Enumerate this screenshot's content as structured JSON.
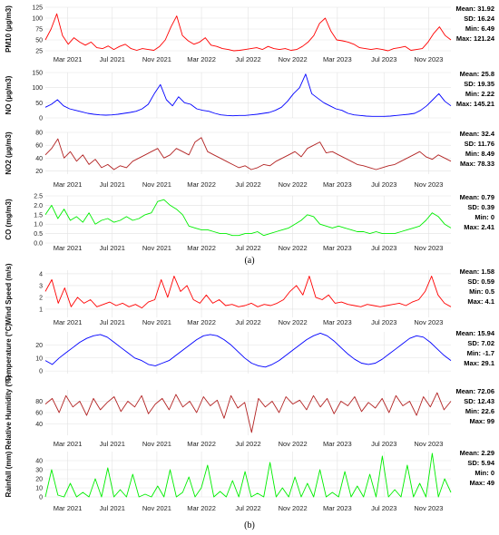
{
  "captions": [
    "(a)",
    "(b)"
  ],
  "chart_data": [
    {
      "type": "line",
      "ylabel": "PM10 (µg/m3)",
      "color": "#ff0000",
      "ylim": [
        25,
        125
      ],
      "yticks": [
        25,
        50,
        75,
        100,
        125
      ],
      "xticks": [
        "Mar 2021",
        "Jul 2021",
        "Nov 2021",
        "Mar 2022",
        "Jul 2022",
        "Nov 2022",
        "Mar 2023",
        "Jul 2023",
        "Nov 2023"
      ],
      "stats": [
        "Mean: 31.92",
        "SD: 16.24",
        "Min: 6.49",
        "Max: 121.24"
      ],
      "series": [
        {
          "values": [
            50,
            75,
            110,
            60,
            40,
            55,
            45,
            38,
            45,
            32,
            30,
            36,
            28,
            35,
            40,
            30,
            26,
            30,
            28,
            26,
            35,
            50,
            80,
            105,
            60,
            48,
            40,
            45,
            55,
            38,
            35,
            30,
            28,
            25,
            26,
            28,
            30,
            32,
            28,
            35,
            30,
            28,
            30,
            26,
            28,
            35,
            45,
            60,
            88,
            100,
            70,
            50,
            48,
            45,
            40,
            32,
            30,
            28,
            30,
            28,
            25,
            30,
            32,
            35,
            26,
            28,
            30,
            45,
            65,
            80,
            60,
            50
          ]
        }
      ]
    },
    {
      "type": "line",
      "ylabel": "NO (µg/m3)",
      "color": "#0000ff",
      "ylim": [
        0,
        150
      ],
      "yticks": [
        0,
        50,
        100,
        150
      ],
      "xticks": [
        "Mar 2021",
        "Jul 2021",
        "Nov 2021",
        "Mar 2022",
        "Jul 2022",
        "Nov 2022",
        "Mar 2023",
        "Jul 2023",
        "Nov 2023"
      ],
      "stats": [
        "Mean: 25.8",
        "SD: 19.35",
        "Min: 2.22",
        "Max: 145.21"
      ],
      "series": [
        {
          "values": [
            35,
            45,
            60,
            40,
            30,
            25,
            20,
            15,
            12,
            10,
            9,
            10,
            12,
            15,
            18,
            22,
            30,
            45,
            80,
            110,
            60,
            40,
            70,
            50,
            45,
            30,
            25,
            22,
            15,
            10,
            8,
            7,
            8,
            8,
            10,
            12,
            15,
            18,
            25,
            35,
            55,
            80,
            100,
            145,
            80,
            65,
            50,
            40,
            30,
            25,
            15,
            10,
            8,
            6,
            5,
            5,
            5,
            6,
            8,
            10,
            12,
            15,
            25,
            40,
            60,
            80,
            55,
            40
          ]
        }
      ]
    },
    {
      "type": "line",
      "ylabel": "NO2 (µg/m3)",
      "color": "#b22222",
      "ylim": [
        15,
        80
      ],
      "yticks": [
        20,
        40,
        60,
        80
      ],
      "xticks": [
        "Mar 2021",
        "Jul 2021",
        "Nov 2021",
        "Mar 2022",
        "Jul 2022",
        "Nov 2022",
        "Mar 2023",
        "Jul 2023",
        "Nov 2023"
      ],
      "stats": [
        "Mean: 32.4",
        "SD: 11.76",
        "Min: 8.49",
        "Max: 78.33"
      ],
      "series": [
        {
          "values": [
            45,
            55,
            70,
            40,
            50,
            35,
            45,
            30,
            38,
            25,
            30,
            22,
            28,
            25,
            35,
            40,
            45,
            50,
            55,
            40,
            45,
            55,
            50,
            45,
            65,
            72,
            50,
            45,
            40,
            35,
            30,
            25,
            28,
            22,
            25,
            30,
            28,
            35,
            40,
            45,
            50,
            42,
            55,
            60,
            65,
            48,
            50,
            45,
            40,
            35,
            30,
            28,
            25,
            22,
            25,
            28,
            30,
            35,
            40,
            45,
            50,
            42,
            38,
            45,
            40,
            35
          ]
        }
      ]
    },
    {
      "type": "line",
      "ylabel": "CO (mg/m3)",
      "color": "#00ee00",
      "ylim": [
        0,
        2.5
      ],
      "yticks": [
        0.0,
        0.5,
        1.0,
        1.5,
        2.0,
        2.5
      ],
      "xticks": [
        "Mar 2021",
        "Jul 2021",
        "Nov 2021",
        "Mar 2022",
        "Jul 2022",
        "Nov 2022",
        "Mar 2023",
        "Jul 2023",
        "Nov 2023"
      ],
      "stats": [
        "Mean: 0.79",
        "SD: 0.39",
        "Min: 0",
        "Max: 2.41"
      ],
      "series": [
        {
          "values": [
            1.5,
            2.0,
            1.3,
            1.8,
            1.2,
            1.4,
            1.1,
            1.6,
            1.0,
            1.2,
            1.3,
            1.1,
            1.2,
            1.4,
            1.2,
            1.3,
            1.5,
            1.6,
            2.2,
            2.3,
            2.0,
            1.8,
            1.5,
            0.9,
            0.8,
            0.7,
            0.7,
            0.6,
            0.5,
            0.5,
            0.4,
            0.4,
            0.5,
            0.5,
            0.6,
            0.4,
            0.5,
            0.6,
            0.7,
            0.8,
            1.0,
            1.2,
            1.5,
            1.4,
            1.0,
            0.9,
            0.8,
            0.9,
            0.8,
            0.7,
            0.6,
            0.6,
            0.5,
            0.6,
            0.5,
            0.5,
            0.5,
            0.6,
            0.7,
            0.8,
            0.9,
            1.2,
            1.6,
            1.4,
            1.0,
            0.8
          ]
        }
      ]
    },
    {
      "type": "line",
      "ylabel": "Wind Speed (m/s)",
      "color": "#ff0000",
      "ylim": [
        0.3,
        4.3
      ],
      "yticks": [
        1,
        2,
        3,
        4
      ],
      "xticks": [
        "Mar 2021",
        "Jul 2021",
        "Nov 2021",
        "Mar 2022",
        "Jul 2022",
        "Nov 2022",
        "Mar 2023",
        "Jul 2023",
        "Nov 2023"
      ],
      "stats": [
        "Mean: 1.58",
        "SD: 0.59",
        "Min: 0.5",
        "Max: 4.1"
      ],
      "series": [
        {
          "values": [
            2.5,
            3.5,
            1.5,
            2.8,
            1.2,
            2.0,
            1.5,
            1.8,
            1.2,
            1.4,
            1.6,
            1.3,
            1.5,
            1.2,
            1.4,
            1.1,
            1.6,
            1.8,
            3.5,
            2.0,
            3.8,
            2.5,
            3.0,
            1.8,
            1.5,
            2.2,
            1.5,
            1.8,
            1.3,
            1.4,
            1.2,
            1.3,
            1.5,
            1.2,
            1.4,
            1.3,
            1.5,
            1.8,
            2.5,
            3.0,
            2.2,
            3.8,
            2.0,
            1.8,
            2.2,
            1.5,
            1.6,
            1.4,
            1.3,
            1.2,
            1.4,
            1.3,
            1.2,
            1.3,
            1.4,
            1.5,
            1.3,
            1.6,
            1.8,
            2.5,
            3.8,
            2.2,
            1.5,
            1.2
          ]
        }
      ]
    },
    {
      "type": "line",
      "ylabel": "Temperature (°C)",
      "color": "#0000ff",
      "ylim": [
        -2,
        30
      ],
      "yticks": [
        0,
        10,
        20
      ],
      "xticks": [
        "Mar 2021",
        "Jul 2021",
        "Nov 2021",
        "Mar 2022",
        "Jul 2022",
        "Nov 2022",
        "Mar 2023",
        "Jul 2023",
        "Nov 2023"
      ],
      "stats": [
        "Mean: 15.94",
        "SD: 7.02",
        "Min: -1.7",
        "Max: 29.1"
      ],
      "series": [
        {
          "values": [
            8,
            5,
            10,
            14,
            18,
            22,
            25,
            27,
            28,
            26,
            22,
            18,
            14,
            10,
            8,
            5,
            4,
            6,
            8,
            12,
            16,
            20,
            24,
            27,
            28,
            27,
            24,
            20,
            15,
            10,
            6,
            4,
            3,
            5,
            8,
            12,
            16,
            20,
            24,
            27,
            29,
            27,
            23,
            18,
            13,
            9,
            6,
            5,
            6,
            9,
            13,
            17,
            21,
            25,
            27,
            26,
            22,
            17,
            12,
            8
          ]
        }
      ]
    },
    {
      "type": "line",
      "ylabel": "Relative Humidity (%)",
      "color": "#b22222",
      "ylim": [
        20,
        100
      ],
      "yticks": [
        40,
        60,
        80
      ],
      "xticks": [
        "Mar 2021",
        "Jul 2021",
        "Nov 2021",
        "Mar 2022",
        "Jul 2022",
        "Nov 2022",
        "Mar 2023",
        "Jul 2023",
        "Nov 2023"
      ],
      "stats": [
        "Mean: 72.06",
        "SD: 12.43",
        "Min: 22.6",
        "Max: 99"
      ],
      "series": [
        {
          "values": [
            75,
            85,
            60,
            90,
            70,
            80,
            55,
            85,
            65,
            78,
            88,
            62,
            80,
            70,
            90,
            58,
            75,
            85,
            65,
            92,
            70,
            80,
            60,
            88,
            72,
            82,
            50,
            90,
            68,
            78,
            25,
            85,
            70,
            80,
            60,
            88,
            75,
            82,
            65,
            90,
            70,
            85,
            58,
            80,
            72,
            88,
            62,
            78,
            68,
            85,
            60,
            90,
            72,
            80,
            55,
            88,
            70,
            95,
            65,
            80
          ]
        }
      ]
    },
    {
      "type": "line",
      "ylabel": "Rainfall (mm)",
      "color": "#00ee00",
      "ylim": [
        0,
        50
      ],
      "yticks": [
        0,
        10,
        20,
        30,
        40
      ],
      "xticks": [
        "Mar 2021",
        "Jul 2021",
        "Nov 2021",
        "Mar 2022",
        "Jul 2022",
        "Nov 2022",
        "Mar 2023",
        "Jul 2023",
        "Nov 2023"
      ],
      "stats": [
        "Mean: 2.29",
        "SD: 5.94",
        "Min: 0",
        "Max: 49"
      ],
      "series": [
        {
          "values": [
            0,
            30,
            2,
            0,
            15,
            0,
            5,
            0,
            20,
            0,
            32,
            0,
            8,
            0,
            25,
            0,
            3,
            0,
            12,
            0,
            30,
            0,
            5,
            22,
            0,
            10,
            35,
            0,
            6,
            0,
            18,
            0,
            28,
            0,
            4,
            0,
            38,
            0,
            10,
            0,
            22,
            0,
            15,
            0,
            30,
            0,
            5,
            0,
            28,
            0,
            12,
            0,
            25,
            0,
            45,
            0,
            8,
            0,
            35,
            0,
            15,
            0,
            48,
            0,
            20,
            5
          ]
        }
      ]
    }
  ]
}
